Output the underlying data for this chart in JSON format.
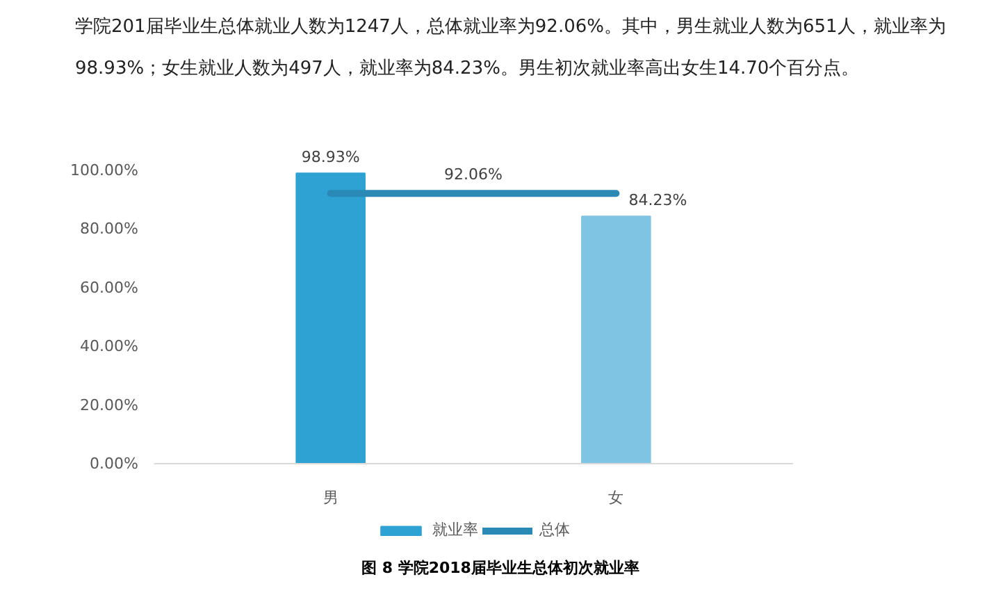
{
  "chart_data": {
    "type": "bar",
    "title": "图 8  学院2018届毕业生总体初次就业率",
    "annotations": [
      "学院201届毕业生总体就业人数为1247人，总体就业率为92.06%。其中，男生就业人数为651人，就业率为98.93%；女生就业人数为497人，就业率为84.23%。男生初次就业率高出女生14.70个百分点。",
      {
        "text": "92.06%",
        "y": 92.06
      }
    ],
    "categories": [
      "男",
      "女"
    ],
    "series": [
      {
        "name": "就业率",
        "colors": [
          "#2ea2d3",
          "#7fc4e3"
        ],
        "values": [
          98.93,
          84.23
        ],
        "value_labels": [
          "98.93%",
          "84.23%"
        ]
      },
      {
        "name": "总体",
        "type": "line",
        "color": "#2a8ab5",
        "values": [
          92.06,
          92.06
        ]
      }
    ],
    "ylim": [
      0,
      108
    ],
    "yticks": [
      {
        "value": 0,
        "label": "0.00%"
      },
      {
        "value": 20,
        "label": "20.00%"
      },
      {
        "value": 40,
        "label": "40.00%"
      },
      {
        "value": 60,
        "label": "60.00%"
      },
      {
        "value": 80,
        "label": "80.00%"
      },
      {
        "value": 100,
        "label": "100.00%"
      }
    ],
    "grid": false,
    "legend": "bottom"
  }
}
